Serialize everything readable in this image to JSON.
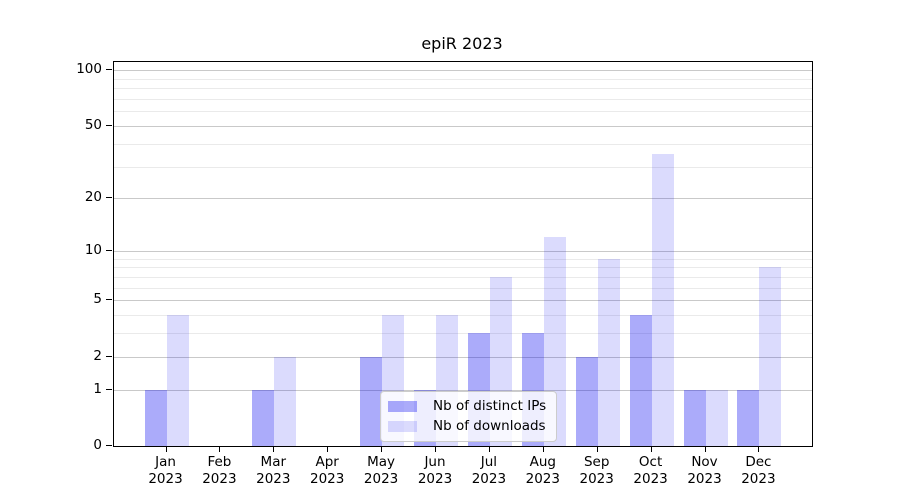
{
  "title": "epiR 2023",
  "x_axis": {
    "months": [
      "Jan",
      "Feb",
      "Mar",
      "Apr",
      "May",
      "Jun",
      "Jul",
      "Aug",
      "Sep",
      "Oct",
      "Nov",
      "Dec"
    ],
    "year": "2023"
  },
  "chart_data": {
    "type": "bar",
    "title": "epiR 2023",
    "categories": [
      "Jan 2023",
      "Feb 2023",
      "Mar 2023",
      "Apr 2023",
      "May 2023",
      "Jun 2023",
      "Jul 2023",
      "Aug 2023",
      "Sep 2023",
      "Oct 2023",
      "Nov 2023",
      "Dec 2023"
    ],
    "series": [
      {
        "name": "Nb of distinct IPs",
        "color": "#0000f054",
        "values": [
          1,
          0,
          1,
          0,
          2,
          1,
          3,
          3,
          2,
          4,
          1,
          1
        ]
      },
      {
        "name": "Nb of downloads",
        "color": "#0000f024",
        "values": [
          4,
          0,
          2,
          0,
          4,
          4,
          7,
          12,
          9,
          35,
          1,
          8
        ]
      }
    ],
    "yscale": "log1p",
    "ylim": [
      0,
      111
    ],
    "yticks_major": [
      0,
      1,
      2,
      5,
      10,
      20,
      50,
      100
    ],
    "yticks_minor": [
      3,
      4,
      6,
      7,
      8,
      9,
      30,
      40,
      60,
      70,
      80,
      90
    ],
    "grid": true,
    "legend_position": "inside lower center"
  }
}
